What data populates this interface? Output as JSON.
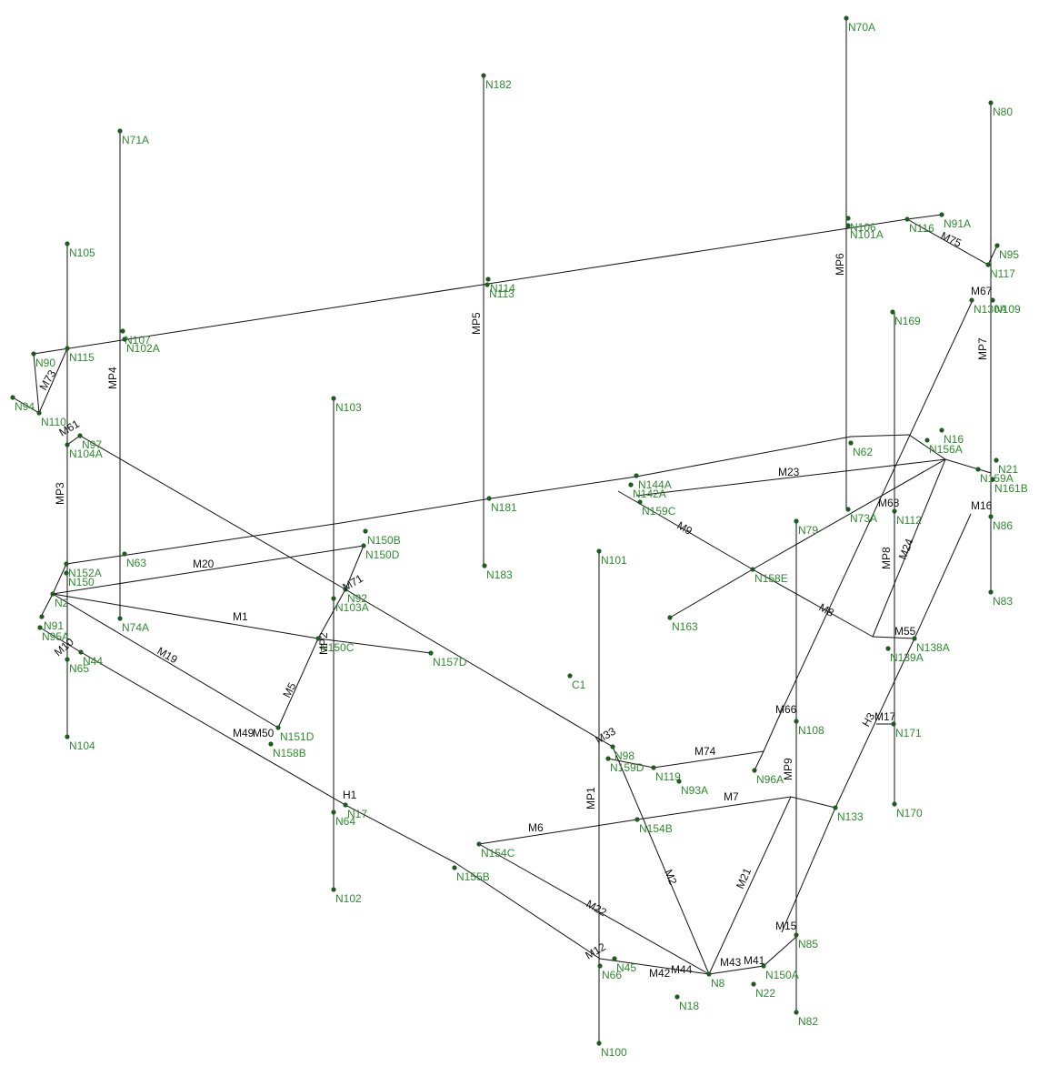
{
  "nodes": [
    {
      "label": "N70A"
    },
    {
      "label": "N182"
    },
    {
      "label": "N80"
    },
    {
      "label": "N71A"
    },
    {
      "label": "N106"
    },
    {
      "label": "N101A"
    },
    {
      "label": "N116"
    },
    {
      "label": "N91A"
    },
    {
      "label": "N95"
    },
    {
      "label": "N117"
    },
    {
      "label": "N114"
    },
    {
      "label": "N113"
    },
    {
      "label": "N105"
    },
    {
      "label": "N115"
    },
    {
      "label": "N90"
    },
    {
      "label": "N107"
    },
    {
      "label": "N102A"
    },
    {
      "label": "N169"
    },
    {
      "label": "N130A"
    },
    {
      "label": "N109"
    },
    {
      "label": "N94"
    },
    {
      "label": "N110"
    },
    {
      "label": "N103"
    },
    {
      "label": "N97"
    },
    {
      "label": "N104A"
    },
    {
      "label": "N16"
    },
    {
      "label": "N156A"
    },
    {
      "label": "N62"
    },
    {
      "label": "N21"
    },
    {
      "label": "N159A"
    },
    {
      "label": "N161B"
    },
    {
      "label": "N144A"
    },
    {
      "label": "N142A"
    },
    {
      "label": "N159C"
    },
    {
      "label": "N181"
    },
    {
      "label": "N63"
    },
    {
      "label": "N152A"
    },
    {
      "label": "N150"
    },
    {
      "label": "N150B"
    },
    {
      "label": "N150D"
    },
    {
      "label": "N101"
    },
    {
      "label": "N183"
    },
    {
      "label": "N158E"
    },
    {
      "label": "N112"
    },
    {
      "label": "N86"
    },
    {
      "label": "N83"
    },
    {
      "label": "N2"
    },
    {
      "label": "N91"
    },
    {
      "label": "N95A"
    },
    {
      "label": "N74A"
    },
    {
      "label": "N92"
    },
    {
      "label": "N103A"
    },
    {
      "label": "N163"
    },
    {
      "label": "N150C"
    },
    {
      "label": "N157D"
    },
    {
      "label": "N138A"
    },
    {
      "label": "N139A"
    },
    {
      "label": "C1"
    },
    {
      "label": "N44"
    },
    {
      "label": "N65"
    },
    {
      "label": "N104"
    },
    {
      "label": "N151D"
    },
    {
      "label": "N158B"
    },
    {
      "label": "N108"
    },
    {
      "label": "N171"
    },
    {
      "label": "N98"
    },
    {
      "label": "N159D"
    },
    {
      "label": "N119"
    },
    {
      "label": "N93A"
    },
    {
      "label": "N96A"
    },
    {
      "label": "N133"
    },
    {
      "label": "N64"
    },
    {
      "label": "N17"
    },
    {
      "label": "N154B"
    },
    {
      "label": "N154C"
    },
    {
      "label": "N155B"
    },
    {
      "label": "N170"
    },
    {
      "label": "N102"
    },
    {
      "label": "N85"
    },
    {
      "label": "N66"
    },
    {
      "label": "N45"
    },
    {
      "label": "N8"
    },
    {
      "label": "N18"
    },
    {
      "label": "N22"
    },
    {
      "label": "N150A"
    },
    {
      "label": "N82"
    },
    {
      "label": "N100"
    },
    {
      "label": "N73A"
    },
    {
      "label": "N79"
    }
  ],
  "members": [
    {
      "label": "MP1"
    },
    {
      "label": "MP2"
    },
    {
      "label": "MP3"
    },
    {
      "label": "MP4"
    },
    {
      "label": "MP5"
    },
    {
      "label": "MP6"
    },
    {
      "label": "MP7"
    },
    {
      "label": "MP8"
    },
    {
      "label": "MP9"
    },
    {
      "label": "M1"
    },
    {
      "label": "M2"
    },
    {
      "label": "M5"
    },
    {
      "label": "M6"
    },
    {
      "label": "M7"
    },
    {
      "label": "M8"
    },
    {
      "label": "M9"
    },
    {
      "label": "M10"
    },
    {
      "label": "M12"
    },
    {
      "label": "M15"
    },
    {
      "label": "M17"
    },
    {
      "label": "M19"
    },
    {
      "label": "M20"
    },
    {
      "label": "M21"
    },
    {
      "label": "M22"
    },
    {
      "label": "M23"
    },
    {
      "label": "M24"
    },
    {
      "label": "M33"
    },
    {
      "label": "M41"
    },
    {
      "label": "M42"
    },
    {
      "label": "M43"
    },
    {
      "label": "M44"
    },
    {
      "label": "M49"
    },
    {
      "label": "M50"
    },
    {
      "label": "M61"
    },
    {
      "label": "M66"
    },
    {
      "label": "M67"
    },
    {
      "label": "M68"
    },
    {
      "label": "M71"
    },
    {
      "label": "M73"
    },
    {
      "label": "M74"
    },
    {
      "label": "M75"
    },
    {
      "label": "M16"
    },
    {
      "label": "M55"
    },
    {
      "label": "H1"
    },
    {
      "label": "H3"
    }
  ]
}
